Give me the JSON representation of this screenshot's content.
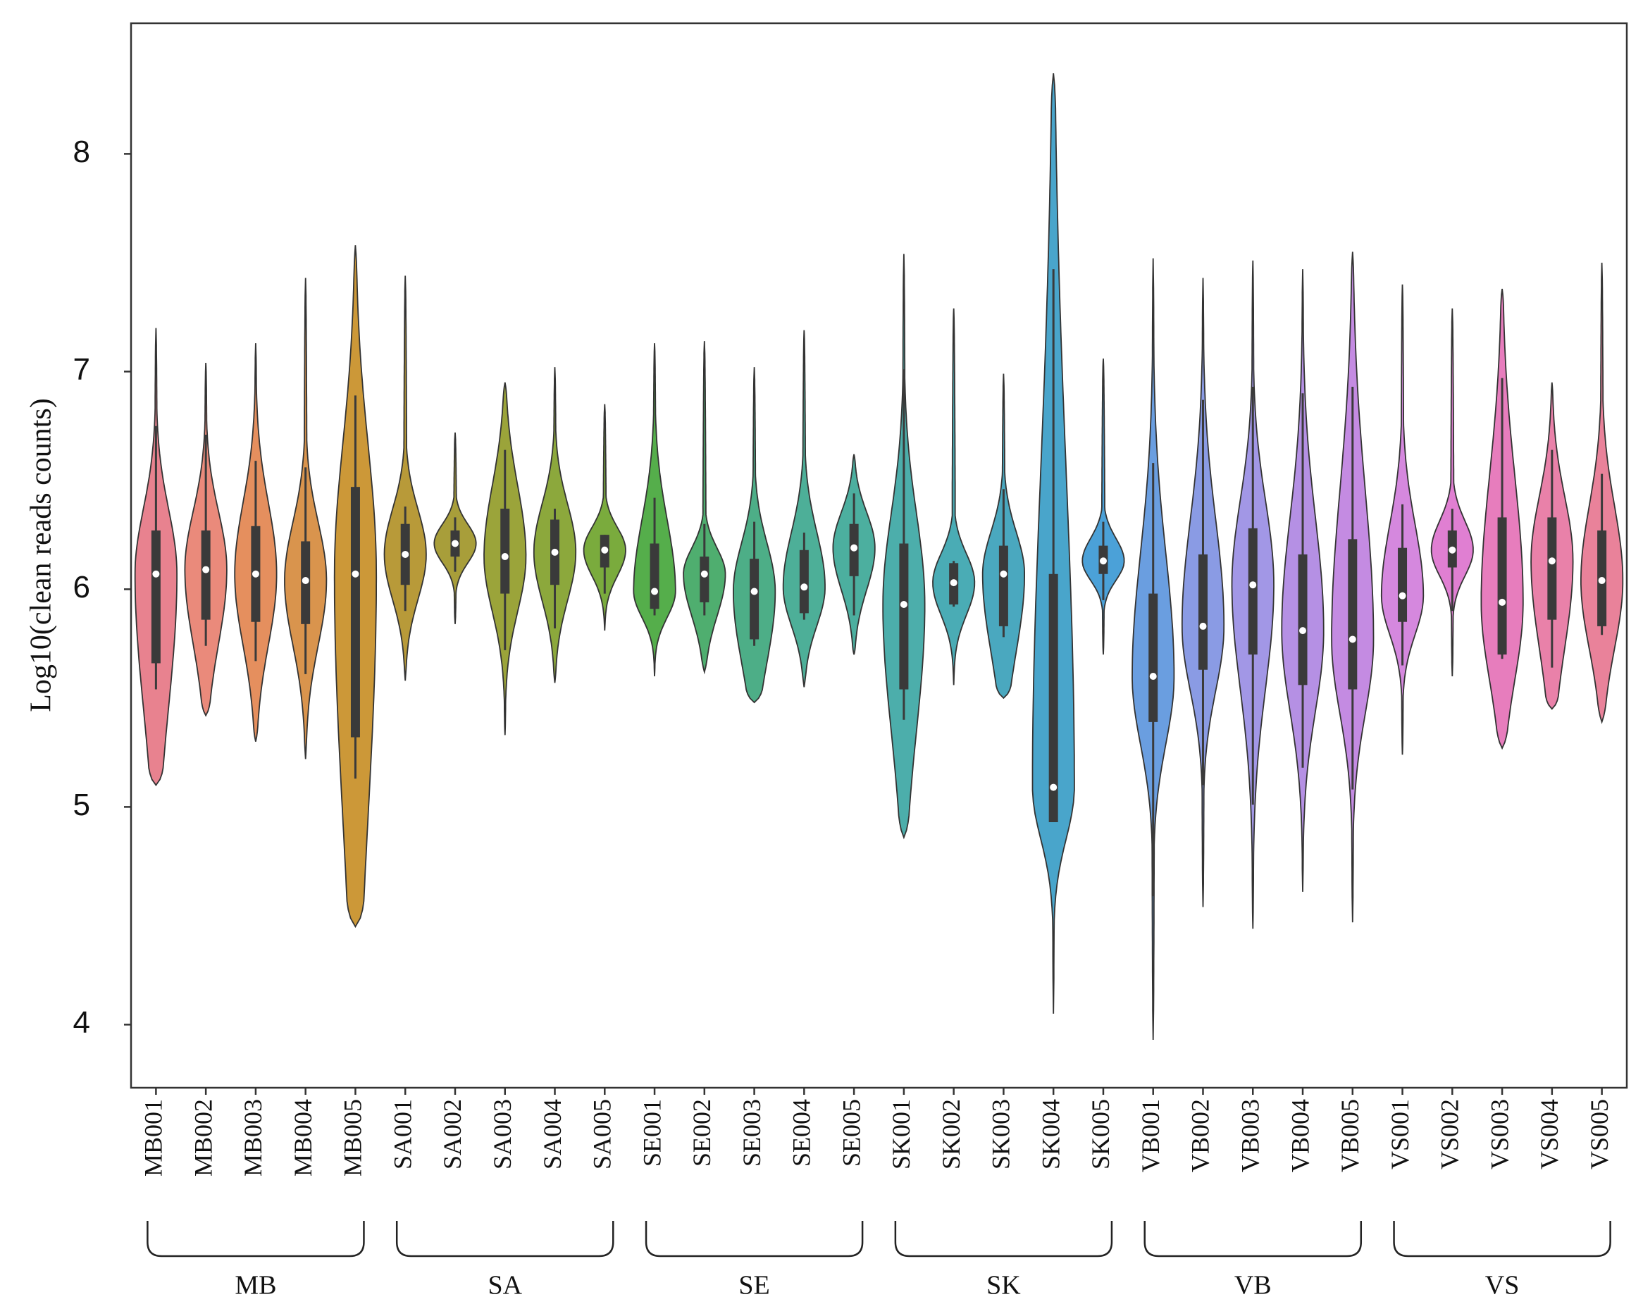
{
  "chart_data": {
    "type": "violin",
    "ylabel": "Log10(clean reads counts)",
    "ylim": [
      3.71,
      8.6
    ],
    "yticks": [
      4,
      5,
      6,
      7,
      8
    ],
    "groups": [
      "MB",
      "SA",
      "SE",
      "SK",
      "VB",
      "VS"
    ],
    "categories": [
      "MB001",
      "MB002",
      "MB003",
      "MB004",
      "MB005",
      "SA001",
      "SA002",
      "SA003",
      "SA004",
      "SA005",
      "SE001",
      "SE002",
      "SE003",
      "SE004",
      "SE005",
      "SK001",
      "SK002",
      "SK003",
      "SK004",
      "SK005",
      "VB001",
      "VB002",
      "VB003",
      "VB004",
      "VB005",
      "VS001",
      "VS002",
      "VS003",
      "VS004",
      "VS005"
    ],
    "colors": [
      "#e8828f",
      "#ea8a7b",
      "#e58f5e",
      "#d9944d",
      "#cc9838",
      "#b89a39",
      "#a89e3a",
      "#9ba43a",
      "#8ca83c",
      "#7aab3d",
      "#55ae4b",
      "#4fae6f",
      "#4dae87",
      "#4daf98",
      "#4caf9f",
      "#4caeab",
      "#4aacb5",
      "#4aa8bf",
      "#49a5cb",
      "#4ba1d8",
      "#6a9ee0",
      "#8a9be4",
      "#a297e6",
      "#b590e4",
      "#c48be2",
      "#d588de",
      "#e07fd2",
      "#e77dbd",
      "#e981a9",
      "#e9829a"
    ],
    "min": [
      5.1,
      5.42,
      5.3,
      5.22,
      4.45,
      5.58,
      5.84,
      5.33,
      5.57,
      5.81,
      5.6,
      5.62,
      5.48,
      5.55,
      5.7,
      4.86,
      5.56,
      5.5,
      4.05,
      5.7,
      3.93,
      4.54,
      4.44,
      4.61,
      4.47,
      5.24,
      5.6,
      5.27,
      5.45,
      5.39
    ],
    "whislo": [
      5.54,
      5.74,
      5.67,
      5.61,
      5.13,
      5.9,
      6.08,
      5.72,
      5.82,
      5.98,
      5.88,
      5.88,
      5.74,
      5.86,
      5.88,
      5.4,
      5.92,
      5.78,
      4.93,
      5.95,
      4.59,
      5.1,
      5.01,
      5.18,
      5.08,
      5.65,
      5.9,
      5.68,
      5.64,
      5.79
    ],
    "q1": [
      5.66,
      5.86,
      5.85,
      5.84,
      5.32,
      6.02,
      6.15,
      5.98,
      6.02,
      6.1,
      5.91,
      5.94,
      5.77,
      5.89,
      6.06,
      5.54,
      5.93,
      5.83,
      4.93,
      6.07,
      5.39,
      5.63,
      5.7,
      5.56,
      5.54,
      5.85,
      6.1,
      5.7,
      5.86,
      5.83
    ],
    "median": [
      6.07,
      6.09,
      6.07,
      6.04,
      6.07,
      6.16,
      6.21,
      6.15,
      6.17,
      6.18,
      5.99,
      6.07,
      5.99,
      6.01,
      6.19,
      5.93,
      6.03,
      6.07,
      5.09,
      6.13,
      5.6,
      5.83,
      6.02,
      5.81,
      5.77,
      5.97,
      6.18,
      5.94,
      6.13,
      6.04
    ],
    "q3": [
      6.27,
      6.27,
      6.29,
      6.22,
      6.47,
      6.3,
      6.27,
      6.37,
      6.32,
      6.25,
      6.21,
      6.15,
      6.14,
      6.18,
      6.3,
      6.21,
      6.12,
      6.2,
      6.07,
      6.2,
      5.98,
      6.16,
      6.28,
      6.16,
      6.23,
      6.19,
      6.27,
      6.33,
      6.33,
      6.27
    ],
    "whishi": [
      6.75,
      6.71,
      6.59,
      6.56,
      6.89,
      6.38,
      6.33,
      6.64,
      6.37,
      6.25,
      6.42,
      6.3,
      6.31,
      6.26,
      6.44,
      7.01,
      6.13,
      6.46,
      7.47,
      6.31,
      6.58,
      6.87,
      6.93,
      6.9,
      6.93,
      6.39,
      6.37,
      6.97,
      6.64,
      6.53
    ],
    "max": [
      7.2,
      7.04,
      7.13,
      7.43,
      7.58,
      7.44,
      6.72,
      6.95,
      7.02,
      6.85,
      7.13,
      7.14,
      7.02,
      7.19,
      6.62,
      7.54,
      7.29,
      6.99,
      8.37,
      7.06,
      7.52,
      7.43,
      7.51,
      7.47,
      7.55,
      7.4,
      7.29,
      7.38,
      6.95,
      7.5
    ]
  }
}
